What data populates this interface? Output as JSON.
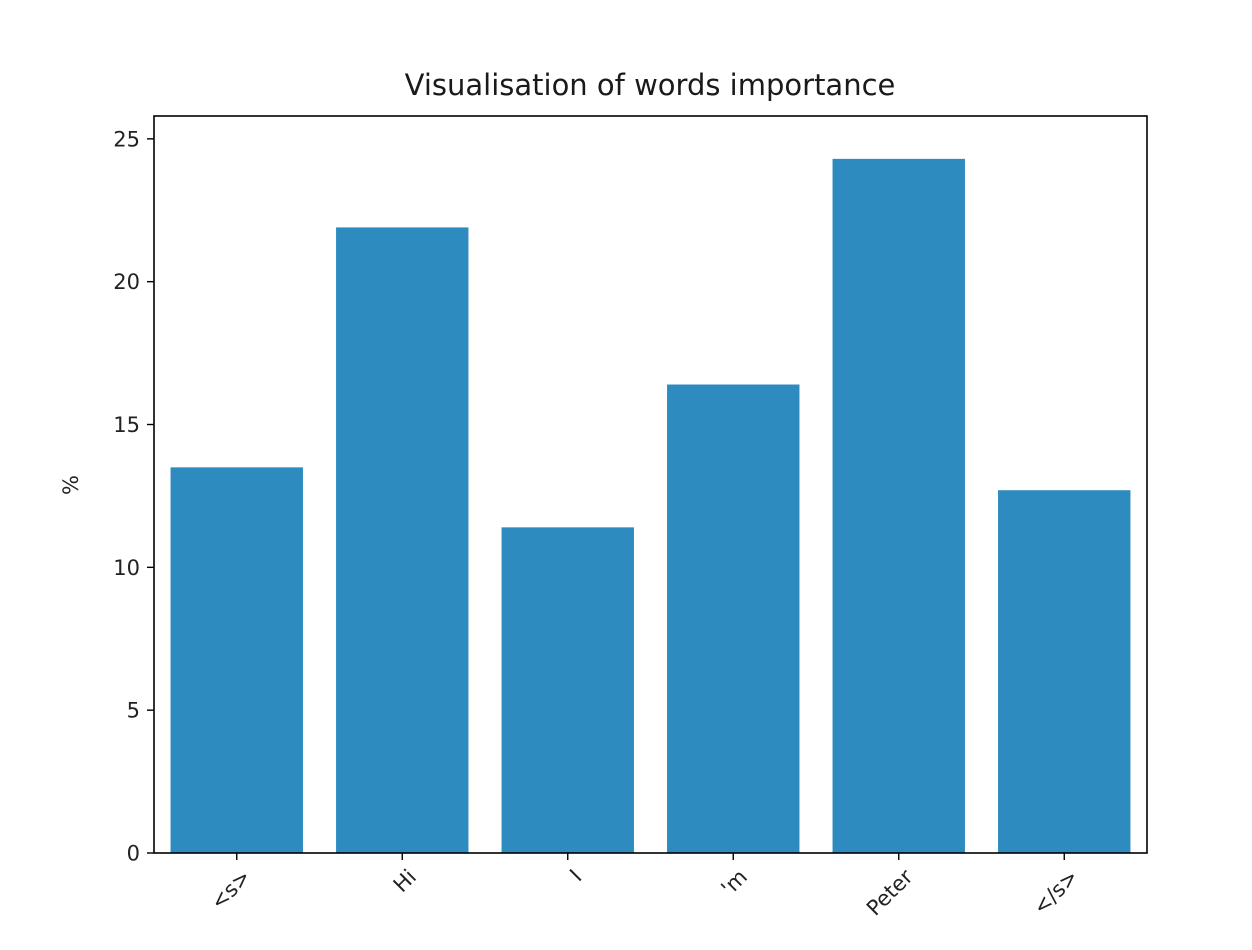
{
  "chart_data": {
    "type": "bar",
    "title": "Visualisation of words importance",
    "xlabel": "",
    "ylabel": "%",
    "categories": [
      "<s>",
      "Hi",
      "I",
      "'m",
      "Peter",
      "</s>"
    ],
    "values": [
      13.5,
      21.9,
      11.4,
      16.4,
      24.3,
      12.7
    ],
    "ylim": [
      0,
      25.8
    ],
    "yticks": [
      0,
      5,
      10,
      15,
      20,
      25
    ],
    "grid": false,
    "legend": "none",
    "bar_color": "#2e8bc0"
  }
}
